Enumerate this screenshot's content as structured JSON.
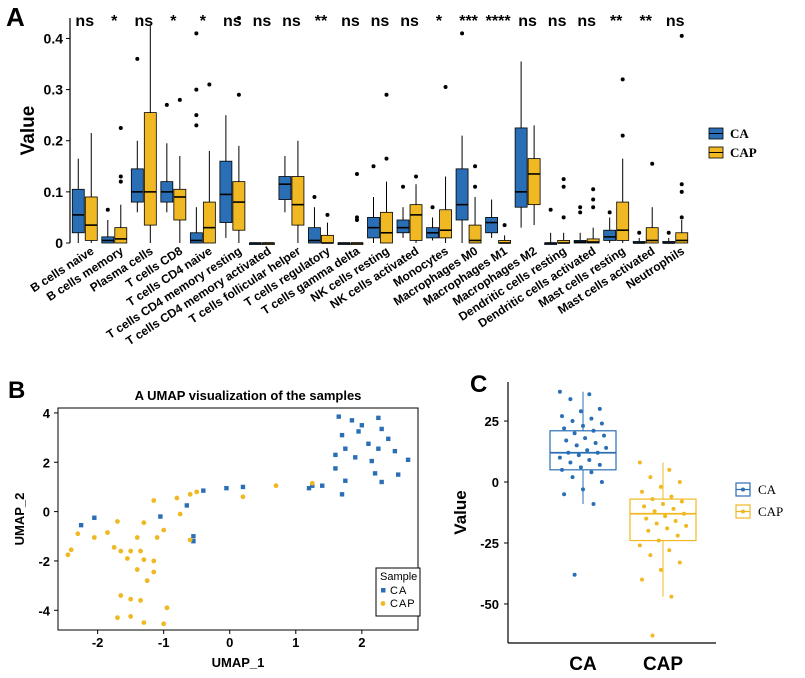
{
  "colors": {
    "ca": "#2a6fb5",
    "cap": "#f0b923",
    "ca_dark": "#1f5fa8",
    "cap_dark": "#e0a800"
  },
  "panels": {
    "a": "A",
    "b": "B",
    "c": "C"
  },
  "chart_data": [
    {
      "type": "box",
      "panel": "A",
      "ylabel": "Value",
      "ylim": [
        0,
        0.44
      ],
      "yticks": [
        0,
        0.1,
        0.2,
        0.3,
        0.4
      ],
      "ytick_labels": [
        "0",
        "0.1",
        "0.2",
        "0.3",
        "0.4"
      ],
      "legend": {
        "entries": [
          "CA",
          "CAP"
        ],
        "position": "right"
      },
      "categories": [
        "B cells naive",
        "B cells memory",
        "Plasma cells",
        "T cells CD8",
        "T cells CD4 naive",
        "T cells CD4 memory resting",
        "T cells CD4 memory activated",
        "T cells follicular helper",
        "T cells regulatory",
        "T cells gamma delta",
        "NK cells resting",
        "NK cells activated",
        "Monocytes",
        "Macrophages M0",
        "Macrophages M1",
        "Macrophages M2",
        "Dendritic cells resting",
        "Dendritic cells activated",
        "Mast cells resting",
        "Mast cells activated",
        "Neutrophils"
      ],
      "significance": [
        "ns",
        "*",
        "ns",
        "*",
        "*",
        "ns",
        "ns",
        "ns",
        "**",
        "ns",
        "ns",
        "ns",
        "*",
        "***",
        "****",
        "ns",
        "ns",
        "ns",
        "**",
        "**",
        "ns"
      ],
      "series": [
        {
          "name": "CA",
          "boxes": [
            {
              "min": 0,
              "q1": 0.02,
              "median": 0.055,
              "q3": 0.105,
              "max": 0.165,
              "outliers": []
            },
            {
              "min": 0,
              "q1": 0,
              "median": 0.005,
              "q3": 0.012,
              "max": 0.045,
              "outliers": [
                0.065
              ]
            },
            {
              "min": 0.06,
              "q1": 0.08,
              "median": 0.1,
              "q3": 0.145,
              "max": 0.2,
              "outliers": [
                0.36
              ]
            },
            {
              "min": 0.06,
              "q1": 0.08,
              "median": 0.1,
              "q3": 0.12,
              "max": 0.195,
              "outliers": [
                0.27
              ]
            },
            {
              "min": 0,
              "q1": 0,
              "median": 0.005,
              "q3": 0.02,
              "max": 0.07,
              "outliers": [
                0.23,
                0.25,
                0.3,
                0.41
              ]
            },
            {
              "min": 0.01,
              "q1": 0.04,
              "median": 0.095,
              "q3": 0.16,
              "max": 0.25,
              "outliers": []
            },
            {
              "min": 0,
              "q1": 0,
              "median": 0,
              "q3": 0,
              "max": 0,
              "outliers": []
            },
            {
              "min": 0.06,
              "q1": 0.085,
              "median": 0.115,
              "q3": 0.13,
              "max": 0.17,
              "outliers": []
            },
            {
              "min": 0,
              "q1": 0,
              "median": 0.005,
              "q3": 0.03,
              "max": 0.07,
              "outliers": [
                0.09
              ]
            },
            {
              "min": 0,
              "q1": 0,
              "median": 0,
              "q3": 0,
              "max": 0,
              "outliers": []
            },
            {
              "min": 0,
              "q1": 0.01,
              "median": 0.03,
              "q3": 0.05,
              "max": 0.09,
              "outliers": [
                0.15
              ]
            },
            {
              "min": 0.01,
              "q1": 0.02,
              "median": 0.03,
              "q3": 0.045,
              "max": 0.07,
              "outliers": [
                0.11
              ]
            },
            {
              "min": 0.005,
              "q1": 0.01,
              "median": 0.02,
              "q3": 0.03,
              "max": 0.05,
              "outliers": [
                0.07
              ]
            },
            {
              "min": 0,
              "q1": 0.045,
              "median": 0.075,
              "q3": 0.145,
              "max": 0.21,
              "outliers": [
                0.41
              ]
            },
            {
              "min": 0.01,
              "q1": 0.02,
              "median": 0.04,
              "q3": 0.05,
              "max": 0.085,
              "outliers": []
            },
            {
              "min": 0.03,
              "q1": 0.07,
              "median": 0.1,
              "q3": 0.225,
              "max": 0.355,
              "outliers": []
            },
            {
              "min": 0,
              "q1": 0,
              "median": 0,
              "q3": 0,
              "max": 0.02,
              "outliers": [
                0.065
              ]
            },
            {
              "min": 0,
              "q1": 0,
              "median": 0.002,
              "q3": 0.005,
              "max": 0.02,
              "outliers": [
                0.06,
                0.07
              ]
            },
            {
              "min": 0,
              "q1": 0.005,
              "median": 0.012,
              "q3": 0.025,
              "max": 0.05,
              "outliers": [
                0.06
              ]
            },
            {
              "min": 0,
              "q1": 0,
              "median": 0,
              "q3": 0.003,
              "max": 0.01,
              "outliers": [
                0.02
              ]
            },
            {
              "min": 0,
              "q1": 0,
              "median": 0,
              "q3": 0.003,
              "max": 0.01,
              "outliers": [
                0.02
              ]
            }
          ]
        },
        {
          "name": "CAP",
          "boxes": [
            {
              "min": 0,
              "q1": 0.005,
              "median": 0.035,
              "q3": 0.09,
              "max": 0.215,
              "outliers": []
            },
            {
              "min": 0,
              "q1": 0,
              "median": 0.008,
              "q3": 0.03,
              "max": 0.075,
              "outliers": [
                0.12,
                0.13,
                0.225
              ]
            },
            {
              "min": 0,
              "q1": 0.035,
              "median": 0.1,
              "q3": 0.255,
              "max": 0.425,
              "outliers": []
            },
            {
              "min": 0,
              "q1": 0.045,
              "median": 0.09,
              "q3": 0.105,
              "max": 0.17,
              "outliers": [
                0.28
              ]
            },
            {
              "min": 0,
              "q1": 0,
              "median": 0.03,
              "q3": 0.08,
              "max": 0.18,
              "outliers": [
                0.31
              ]
            },
            {
              "min": 0,
              "q1": 0.025,
              "median": 0.08,
              "q3": 0.12,
              "max": 0.19,
              "outliers": [
                0.29,
                0.44
              ]
            },
            {
              "min": 0,
              "q1": 0,
              "median": 0,
              "q3": 0,
              "max": 0,
              "outliers": []
            },
            {
              "min": 0,
              "q1": 0.035,
              "median": 0.075,
              "q3": 0.13,
              "max": 0.2,
              "outliers": []
            },
            {
              "min": 0,
              "q1": 0,
              "median": 0,
              "q3": 0.015,
              "max": 0.04,
              "outliers": [
                0.055
              ]
            },
            {
              "min": 0,
              "q1": 0,
              "median": 0,
              "q3": 0,
              "max": 0,
              "outliers": [
                0.045,
                0.05,
                0.135
              ]
            },
            {
              "min": 0,
              "q1": 0,
              "median": 0.02,
              "q3": 0.06,
              "max": 0.12,
              "outliers": [
                0.165,
                0.29
              ]
            },
            {
              "min": 0,
              "q1": 0.005,
              "median": 0.055,
              "q3": 0.075,
              "max": 0.115,
              "outliers": [
                0.13
              ]
            },
            {
              "min": 0,
              "q1": 0.01,
              "median": 0.025,
              "q3": 0.065,
              "max": 0.13,
              "outliers": [
                0.305
              ]
            },
            {
              "min": 0,
              "q1": 0,
              "median": 0.005,
              "q3": 0.035,
              "max": 0.09,
              "outliers": [
                0.11,
                0.15
              ]
            },
            {
              "min": 0,
              "q1": 0,
              "median": 0,
              "q3": 0.005,
              "max": 0.015,
              "outliers": [
                0.035
              ]
            },
            {
              "min": 0.035,
              "q1": 0.075,
              "median": 0.135,
              "q3": 0.165,
              "max": 0.23,
              "outliers": []
            },
            {
              "min": 0,
              "q1": 0,
              "median": 0,
              "q3": 0.005,
              "max": 0.02,
              "outliers": [
                0.05,
                0.11,
                0.125
              ]
            },
            {
              "min": 0,
              "q1": 0,
              "median": 0.002,
              "q3": 0.008,
              "max": 0.03,
              "outliers": [
                0.07,
                0.085,
                0.105
              ]
            },
            {
              "min": 0,
              "q1": 0.005,
              "median": 0.025,
              "q3": 0.08,
              "max": 0.165,
              "outliers": [
                0.21,
                0.32
              ]
            },
            {
              "min": 0,
              "q1": 0,
              "median": 0.005,
              "q3": 0.03,
              "max": 0.07,
              "outliers": [
                0.155
              ]
            },
            {
              "min": 0,
              "q1": 0,
              "median": 0.005,
              "q3": 0.02,
              "max": 0.045,
              "outliers": [
                0.05,
                0.1,
                0.115,
                0.405
              ]
            }
          ]
        }
      ]
    },
    {
      "type": "scatter",
      "panel": "B",
      "title": "A UMAP visualization of the samples",
      "xlabel": "UMAP_1",
      "ylabel": "UMAP_2",
      "xlim": [
        -2.6,
        2.85
      ],
      "ylim": [
        -4.8,
        4.2
      ],
      "xticks": [
        -2,
        -1,
        0,
        1,
        2
      ],
      "yticks": [
        -4,
        -2,
        0,
        2,
        4
      ],
      "legend": {
        "title": "Sample",
        "entries": [
          "CA",
          "CAP"
        ],
        "position": "bottom-right"
      },
      "series": [
        {
          "name": "CA",
          "points": [
            [
              1.65,
              3.85
            ],
            [
              1.85,
              3.7
            ],
            [
              2.0,
              3.5
            ],
            [
              2.25,
              3.8
            ],
            [
              1.95,
              3.25
            ],
            [
              2.3,
              3.35
            ],
            [
              1.7,
              3.1
            ],
            [
              2.4,
              2.95
            ],
            [
              2.1,
              2.75
            ],
            [
              1.75,
              2.55
            ],
            [
              2.25,
              2.55
            ],
            [
              2.5,
              2.45
            ],
            [
              1.6,
              2.3
            ],
            [
              1.9,
              2.2
            ],
            [
              2.15,
              2.05
            ],
            [
              2.7,
              2.1
            ],
            [
              1.6,
              1.75
            ],
            [
              2.2,
              1.55
            ],
            [
              2.55,
              1.5
            ],
            [
              1.75,
              1.25
            ],
            [
              2.3,
              1.2
            ],
            [
              1.4,
              1.05
            ],
            [
              1.25,
              1.05
            ],
            [
              1.2,
              0.95
            ],
            [
              1.7,
              0.7
            ],
            [
              -0.05,
              0.95
            ],
            [
              -0.4,
              0.85
            ],
            [
              0.2,
              1.0
            ],
            [
              -0.65,
              0.25
            ],
            [
              -0.55,
              -1.0
            ],
            [
              -0.55,
              -1.2
            ],
            [
              -1.05,
              -0.2
            ],
            [
              -2.05,
              -0.25
            ],
            [
              -2.25,
              -0.55
            ]
          ]
        },
        {
          "name": "CAP",
          "points": [
            [
              1.25,
              1.15
            ],
            [
              0.7,
              1.05
            ],
            [
              0.2,
              0.6
            ],
            [
              -0.5,
              0.8
            ],
            [
              -0.6,
              0.7
            ],
            [
              -0.8,
              0.55
            ],
            [
              -1.15,
              0.45
            ],
            [
              -0.75,
              -0.1
            ],
            [
              -1.0,
              -0.75
            ],
            [
              -1.3,
              -0.45
            ],
            [
              -1.7,
              -0.4
            ],
            [
              -2.3,
              -0.9
            ],
            [
              -2.05,
              -1.05
            ],
            [
              -1.85,
              -0.85
            ],
            [
              -1.4,
              -1.05
            ],
            [
              -1.1,
              -1.05
            ],
            [
              -0.6,
              -1.15
            ],
            [
              -1.75,
              -1.45
            ],
            [
              -1.65,
              -1.6
            ],
            [
              -1.5,
              -1.6
            ],
            [
              -1.35,
              -1.6
            ],
            [
              -1.55,
              -1.9
            ],
            [
              -1.3,
              -1.95
            ],
            [
              -1.15,
              -2.0
            ],
            [
              -2.4,
              -1.55
            ],
            [
              -2.45,
              -1.75
            ],
            [
              -1.15,
              -2.45
            ],
            [
              -1.4,
              -2.35
            ],
            [
              -1.25,
              -2.8
            ],
            [
              -1.65,
              -3.4
            ],
            [
              -1.5,
              -3.55
            ],
            [
              -1.35,
              -3.6
            ],
            [
              -1.7,
              -4.3
            ],
            [
              -1.5,
              -4.25
            ],
            [
              -1.3,
              -4.5
            ],
            [
              -1.0,
              -4.55
            ],
            [
              -0.95,
              -3.9
            ]
          ]
        }
      ]
    },
    {
      "type": "box",
      "panel": "C",
      "ylabel": "Value",
      "categories": [
        "CA",
        "CAP"
      ],
      "ylim": [
        -66,
        41
      ],
      "yticks": [
        25,
        0,
        -25,
        -50
      ],
      "legend": {
        "entries": [
          "CA",
          "CAP"
        ],
        "position": "right"
      },
      "series": [
        {
          "name": "CA",
          "box": {
            "min": -9,
            "q1": 5,
            "median": 12,
            "q3": 21,
            "max": 37,
            "outliers": [
              -38
            ]
          },
          "points": [
            37,
            36,
            34,
            30,
            29,
            27,
            26,
            25,
            24,
            23,
            22,
            21,
            20,
            19,
            18,
            17,
            16,
            15,
            14,
            13,
            12,
            12,
            11,
            10,
            9,
            8,
            7,
            6,
            5,
            4,
            2,
            0,
            -3,
            -5,
            -9,
            -38
          ]
        },
        {
          "name": "CAP",
          "box": {
            "min": -47,
            "q1": -24,
            "median": -13,
            "q3": -7,
            "max": 8,
            "outliers": [
              -63
            ]
          },
          "points": [
            8,
            5,
            2,
            0,
            -2,
            -4,
            -6,
            -7,
            -8,
            -9,
            -10,
            -11,
            -12,
            -13,
            -14,
            -15,
            -16,
            -17,
            -18,
            -19,
            -20,
            -22,
            -24,
            -26,
            -28,
            -30,
            -33,
            -36,
            -40,
            -47,
            -63
          ]
        }
      ]
    }
  ]
}
